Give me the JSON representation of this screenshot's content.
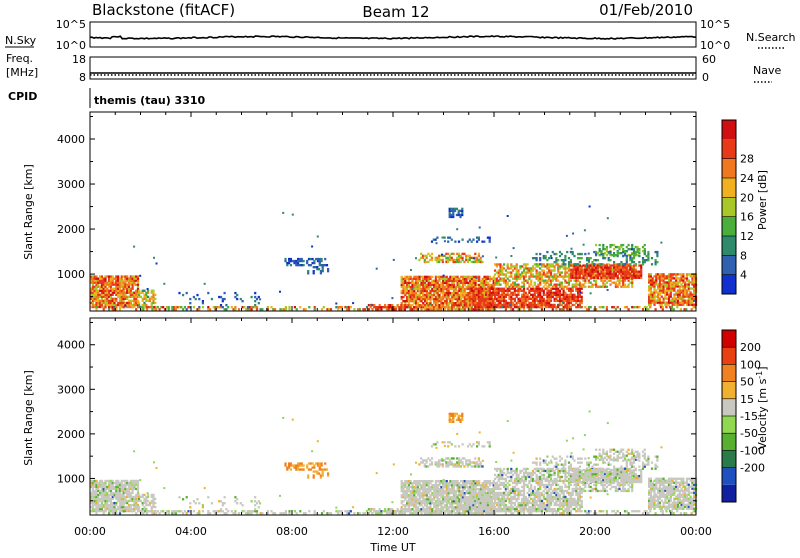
{
  "header": {
    "station": "Blackstone (fitACF)",
    "beam": "Beam 12",
    "date": "01/Feb/2010"
  },
  "top_panels": {
    "nsky_label": "N.Sky",
    "nsky_ticks": [
      "10^5",
      "10^0"
    ],
    "nsearch_label": "N.Search",
    "nsearch_ticks": [
      "10^5",
      "10^0"
    ],
    "freq_label": "Freq.",
    "freq_unit": "[MHz]",
    "freq_ticks": [
      "18",
      "8"
    ],
    "nave_label": "Nave",
    "nave_ticks": [
      "60",
      "0"
    ],
    "cpid_label": "CPID",
    "cpid_value": "themis (tau) 3310"
  },
  "chart_data": [
    {
      "type": "heatmap",
      "name": "power-panel",
      "ylabel": "Slant Range [km]",
      "yticks": [
        1000,
        2000,
        3000,
        4000
      ],
      "ylim": [
        180,
        4600
      ],
      "xlim": [
        0,
        24
      ],
      "colorbar": {
        "label": "Power [dB]",
        "ticks": [
          "4",
          "8",
          "12",
          "16",
          "20",
          "24",
          "28"
        ],
        "colors": [
          "#1030d0",
          "#3060b0",
          "#2e8a6a",
          "#4aae3a",
          "#a8c82a",
          "#f0b020",
          "#f07820",
          "#e83a18",
          "#d01010"
        ]
      }
    },
    {
      "type": "heatmap",
      "name": "velocity-panel",
      "ylabel": "Slant Range [km]",
      "yticks": [
        1000,
        2000,
        3000,
        4000
      ],
      "ylim": [
        180,
        4600
      ],
      "xlim": [
        0,
        24
      ],
      "xlabel": "Time UT",
      "xticks": [
        "00:00",
        "04:00",
        "08:00",
        "12:00",
        "16:00",
        "20:00",
        "00:00"
      ],
      "colorbar": {
        "label": "Velocity [m s^-1]",
        "ticks": [
          "200",
          "100",
          "50",
          "15",
          "-15",
          "-50",
          "-100",
          "-200"
        ],
        "colors": [
          "#1020a0",
          "#2050c0",
          "#2a7a4a",
          "#58b030",
          "#90d850",
          "#c8c8c0",
          "#f0b030",
          "#f08020",
          "#e84010",
          "#d00000"
        ]
      }
    }
  ]
}
